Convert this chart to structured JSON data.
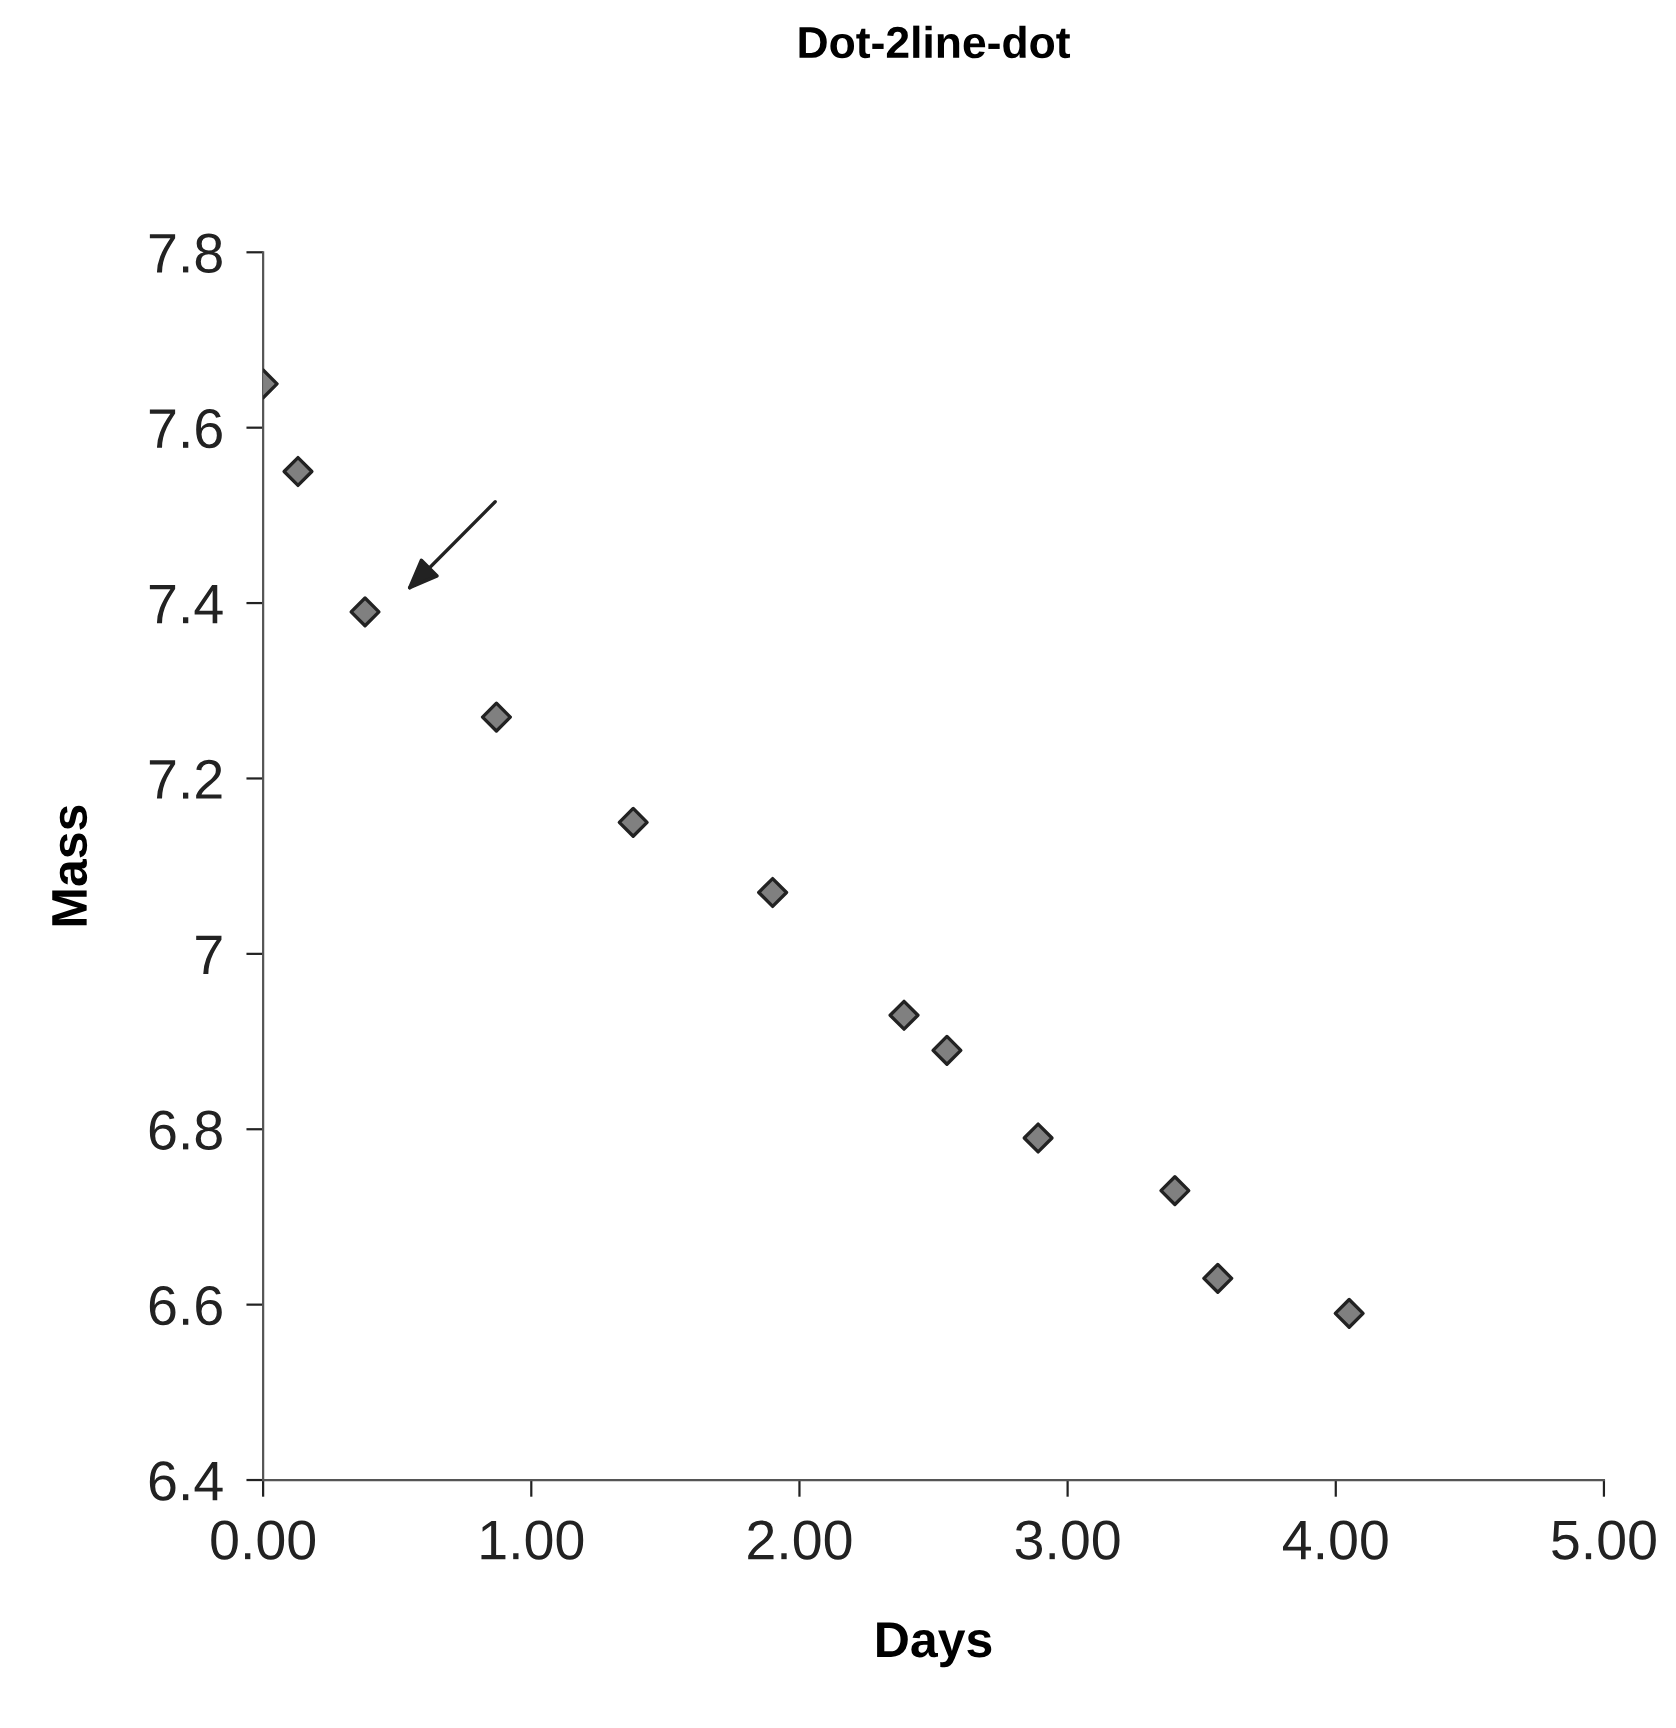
{
  "chart_data": {
    "type": "scatter",
    "title": "Dot-2line-dot",
    "xlabel": "Days",
    "ylabel": "Mass",
    "x": [
      0.0,
      0.13,
      0.38,
      0.87,
      1.38,
      1.9,
      2.39,
      2.55,
      2.89,
      3.4,
      3.56,
      4.05
    ],
    "series": [
      {
        "color": "#808080",
        "values": [
          7.65,
          7.55,
          7.39,
          7.27,
          7.15,
          7.07,
          6.93,
          6.89,
          6.79,
          6.73,
          6.63,
          6.59
        ]
      }
    ],
    "xlim": [
      0,
      5
    ],
    "ylim": [
      6.4,
      7.8
    ],
    "xticks": [
      {
        "value": 0,
        "label": "0.00"
      },
      {
        "value": 1,
        "label": "1.00"
      },
      {
        "value": 2,
        "label": "2.00"
      },
      {
        "value": 3,
        "label": "3.00"
      },
      {
        "value": 4,
        "label": "4.00"
      },
      {
        "value": 5,
        "label": "5.00"
      }
    ],
    "yticks": [
      6.4,
      6.6,
      6.8,
      7,
      7.2,
      7.4,
      7.6,
      7.8
    ],
    "marker": "diamond",
    "grid": false,
    "legend": false
  }
}
